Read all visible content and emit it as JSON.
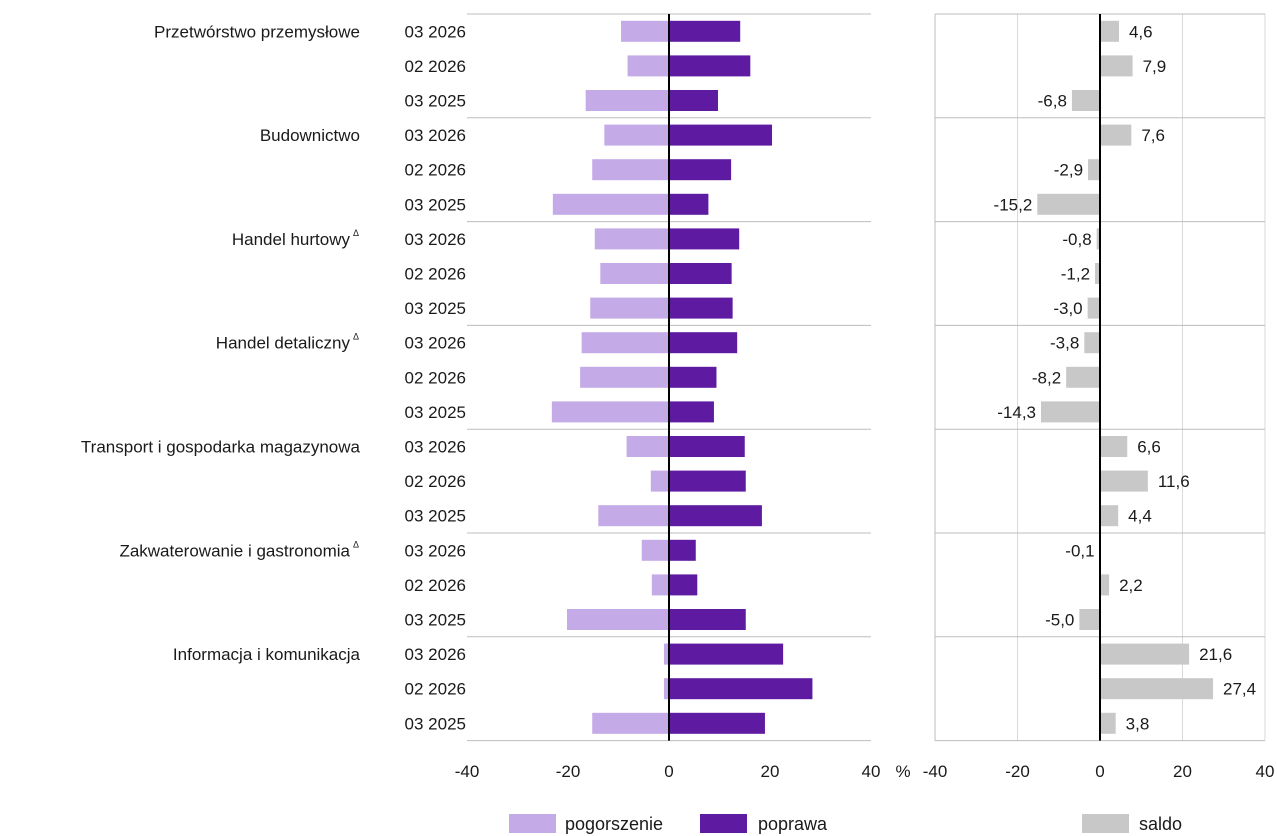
{
  "chart_data": {
    "type": "bar",
    "orientation": "horizontal",
    "sectors": [
      {
        "name": "Przetwórstwo przemysłowe",
        "note": "",
        "periods": [
          "03 2026",
          "02 2026",
          "03 2025"
        ],
        "pogorszenie": [
          -9.5,
          -8.2,
          -16.5
        ],
        "poprawa": [
          14.1,
          16.1,
          9.7
        ],
        "saldo": [
          4.6,
          7.9,
          -6.8
        ]
      },
      {
        "name": "Budownictwo",
        "note": "",
        "periods": [
          "03 2026",
          "02 2026",
          "03 2025"
        ],
        "pogorszenie": [
          -12.8,
          -15.2,
          -23.0
        ],
        "poprawa": [
          20.4,
          12.3,
          7.8
        ],
        "saldo": [
          7.6,
          -2.9,
          -15.2
        ]
      },
      {
        "name": "Handel hurtowy",
        "note": "Δ",
        "periods": [
          "03 2026",
          "02 2026",
          "03 2025"
        ],
        "pogorszenie": [
          -14.7,
          -13.6,
          -15.6
        ],
        "poprawa": [
          13.9,
          12.4,
          12.6
        ],
        "saldo": [
          -0.8,
          -1.2,
          -3.0
        ]
      },
      {
        "name": "Handel detaliczny",
        "note": "Δ",
        "periods": [
          "03 2026",
          "02 2026",
          "03 2025"
        ],
        "pogorszenie": [
          -17.3,
          -17.6,
          -23.2
        ],
        "poprawa": [
          13.5,
          9.4,
          8.9
        ],
        "saldo": [
          -3.8,
          -8.2,
          -14.3
        ]
      },
      {
        "name": "Transport i gospodarka magazynowa",
        "note": "",
        "periods": [
          "03 2026",
          "02 2026",
          "03 2025"
        ],
        "pogorszenie": [
          -8.4,
          -3.6,
          -14.0
        ],
        "poprawa": [
          15.0,
          15.2,
          18.4
        ],
        "saldo": [
          6.6,
          11.6,
          4.4
        ]
      },
      {
        "name": "Zakwaterowanie i gastronomia",
        "note": "Δ",
        "periods": [
          "03 2026",
          "02 2026",
          "03 2025"
        ],
        "pogorszenie": [
          -5.4,
          -3.4,
          -20.2
        ],
        "poprawa": [
          5.3,
          5.6,
          15.2
        ],
        "saldo": [
          -0.1,
          2.2,
          -5.0
        ]
      },
      {
        "name": "Informacja i komunikacja",
        "note": "",
        "periods": [
          "03 2026",
          "02 2026",
          "03 2025"
        ],
        "pogorszenie": [
          -1.0,
          -1.0,
          -15.2
        ],
        "poprawa": [
          22.6,
          28.4,
          19.0
        ],
        "saldo": [
          21.6,
          27.4,
          3.8
        ]
      }
    ],
    "saldo_labels": [
      [
        "4,6",
        "7,9",
        "-6,8"
      ],
      [
        "7,6",
        "-2,9",
        "-15,2"
      ],
      [
        "-0,8",
        "-1,2",
        "-3,0"
      ],
      [
        "-3,8",
        "-8,2",
        "-14,3"
      ],
      [
        "6,6",
        "11,6",
        "4,4"
      ],
      [
        "-0,1",
        "2,2",
        "-5,0"
      ],
      [
        "21,6",
        "27,4",
        "3,8"
      ]
    ],
    "left_panel": {
      "xlim": [
        -40,
        40
      ],
      "ticks": [
        "-40",
        "-20",
        "0",
        "20",
        "40"
      ],
      "unit": "%"
    },
    "right_panel": {
      "xlim": [
        -40,
        40
      ],
      "ticks": [
        "-40",
        "-20",
        "0",
        "20",
        "40"
      ],
      "grid": true
    },
    "legend": [
      {
        "name": "pogorszenie",
        "color": "#c4aae6"
      },
      {
        "name": "poprawa",
        "color": "#5e1aa0"
      },
      {
        "name": "saldo",
        "color": "#c8c8c8"
      }
    ],
    "colors": {
      "pogorszenie": "#c4aae6",
      "poprawa": "#5e1aa0",
      "saldo": "#c8c8c8",
      "axis": "#000000",
      "separator": "#bdbdbd"
    }
  }
}
